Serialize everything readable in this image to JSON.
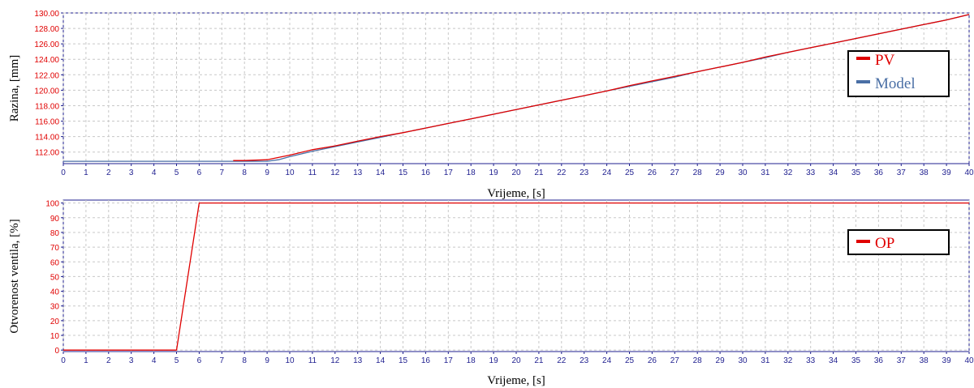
{
  "charts": [
    {
      "id": "level",
      "chart_data": {
        "type": "line",
        "xlabel": "Vrijeme, [s]",
        "ylabel": "Razina, [mm]",
        "xlim": [
          0,
          40
        ],
        "ylim": [
          110.5,
          130
        ],
        "x_ticks": [
          0,
          1,
          2,
          3,
          4,
          5,
          6,
          7,
          8,
          9,
          10,
          11,
          12,
          13,
          14,
          15,
          16,
          17,
          18,
          19,
          20,
          21,
          22,
          23,
          24,
          25,
          26,
          27,
          28,
          29,
          30,
          31,
          32,
          33,
          34,
          35,
          36,
          37,
          38,
          39,
          40
        ],
        "y_ticks": [
          "112.00",
          "114.00",
          "116.00",
          "118.00",
          "120.00",
          "122.00",
          "124.00",
          "126.00",
          "128.00",
          "130.00"
        ],
        "grid": true,
        "legend_position": "right",
        "series": [
          {
            "name": "PV",
            "color": "#e00000",
            "x": [
              7.5,
              8,
              9,
              10,
              11,
              12,
              13,
              14,
              15,
              16,
              17,
              18,
              19,
              20,
              21,
              22,
              23,
              24,
              25,
              26,
              27,
              28,
              29,
              30,
              31,
              32,
              33,
              34,
              35,
              36,
              37,
              38,
              39,
              40
            ],
            "y": [
              110.9,
              110.9,
              111.0,
              111.6,
              112.3,
              112.8,
              113.4,
              114.0,
              114.5,
              115.1,
              115.7,
              116.3,
              116.9,
              117.5,
              118.1,
              118.7,
              119.3,
              119.9,
              120.6,
              121.2,
              121.8,
              122.4,
              123.0,
              123.6,
              124.3,
              124.9,
              125.5,
              126.1,
              126.7,
              127.3,
              127.9,
              128.5,
              129.1,
              129.8
            ]
          },
          {
            "name": "Model",
            "color": "#4a6fa5",
            "x": [
              0,
              9,
              9.5,
              10,
              11,
              12,
              13,
              14,
              15,
              16,
              17,
              18,
              19,
              20,
              21,
              22,
              23,
              24,
              25,
              26,
              27,
              28,
              29,
              30,
              31,
              32,
              33,
              34,
              35,
              36,
              37,
              38,
              39,
              40
            ],
            "y": [
              110.8,
              110.8,
              111.0,
              111.4,
              112.1,
              112.7,
              113.3,
              113.9,
              114.5,
              115.1,
              115.7,
              116.3,
              116.9,
              117.5,
              118.1,
              118.7,
              119.3,
              119.9,
              120.5,
              121.1,
              121.7,
              122.4,
              123.0,
              123.6,
              124.2,
              124.9,
              125.5,
              126.1,
              126.7,
              127.3,
              127.9,
              128.5,
              129.1,
              129.8
            ]
          }
        ]
      }
    },
    {
      "id": "valve",
      "chart_data": {
        "type": "line",
        "xlabel": "Vrijeme, [s]",
        "ylabel": "Otvorenost ventila, [%]",
        "xlim": [
          0,
          40
        ],
        "ylim": [
          -1,
          102
        ],
        "x_ticks": [
          0,
          1,
          2,
          3,
          4,
          5,
          6,
          7,
          8,
          9,
          10,
          11,
          12,
          13,
          14,
          15,
          16,
          17,
          18,
          19,
          20,
          21,
          22,
          23,
          24,
          25,
          26,
          27,
          28,
          29,
          30,
          31,
          32,
          33,
          34,
          35,
          36,
          37,
          38,
          39,
          40
        ],
        "y_ticks": [
          "0",
          "10",
          "20",
          "30",
          "40",
          "50",
          "60",
          "70",
          "80",
          "90",
          "100"
        ],
        "grid": true,
        "legend_position": "right",
        "series": [
          {
            "name": "OP",
            "color": "#e00000",
            "x": [
              0,
              5,
              6,
              40
            ],
            "y": [
              0,
              0,
              100,
              100
            ]
          }
        ]
      }
    }
  ]
}
